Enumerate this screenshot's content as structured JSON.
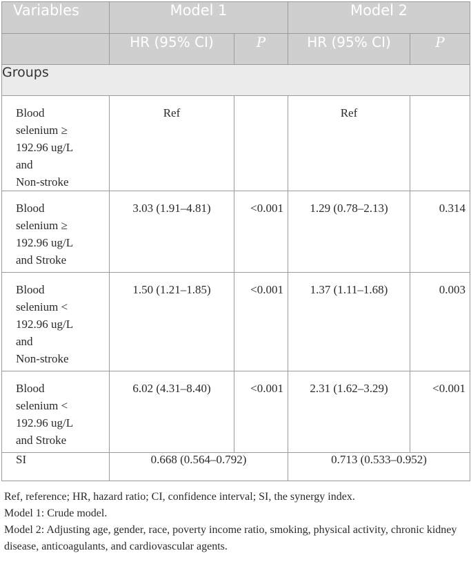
{
  "header": {
    "variables": "Variables",
    "model1": "Model 1",
    "model2": "Model 2",
    "hr_ci_1": "HR (95% CI)",
    "p_1": "P",
    "hr_ci_2": "HR (95% CI)",
    "p_2": "P"
  },
  "section": {
    "groups": "Groups"
  },
  "rows": [
    {
      "label": [
        "Blood",
        "selenium ≥",
        "192.96 ug/L",
        "and",
        "Non-stroke"
      ],
      "m1_hr": "Ref",
      "m1_p": "",
      "m2_hr": "Ref",
      "m2_p": ""
    },
    {
      "label": [
        "Blood",
        "selenium ≥",
        "192.96 ug/L",
        "and Stroke"
      ],
      "m1_hr": "3.03 (1.91–4.81)",
      "m1_p": "<0.001",
      "m2_hr": "1.29 (0.78–2.13)",
      "m2_p": "0.314"
    },
    {
      "label": [
        "Blood",
        "selenium <",
        "192.96 ug/L",
        "and",
        "Non-stroke"
      ],
      "m1_hr": "1.50 (1.21–1.85)",
      "m1_p": "<0.001",
      "m2_hr": "1.37 (1.11–1.68)",
      "m2_p": "0.003"
    },
    {
      "label": [
        "Blood",
        "selenium <",
        "192.96 ug/L",
        "and Stroke"
      ],
      "m1_hr": "6.02 (4.31–8.40)",
      "m1_p": "<0.001",
      "m2_hr": "2.31 (1.62–3.29)",
      "m2_p": "<0.001"
    }
  ],
  "si": {
    "label": "SI",
    "m1": "0.668 (0.564–0.792)",
    "m2": "0.713 (0.533–0.952)"
  },
  "notes": {
    "abbrev": "Ref, reference; HR, hazard ratio; CI, confidence interval; SI, the synergy index.",
    "model1": "Model 1: Crude model.",
    "model2": "Model 2: Adjusting age, gender, race, poverty income ratio, smoking, physical activity, chronic kidney disease, anticoagulants, and cardiovascular agents."
  }
}
